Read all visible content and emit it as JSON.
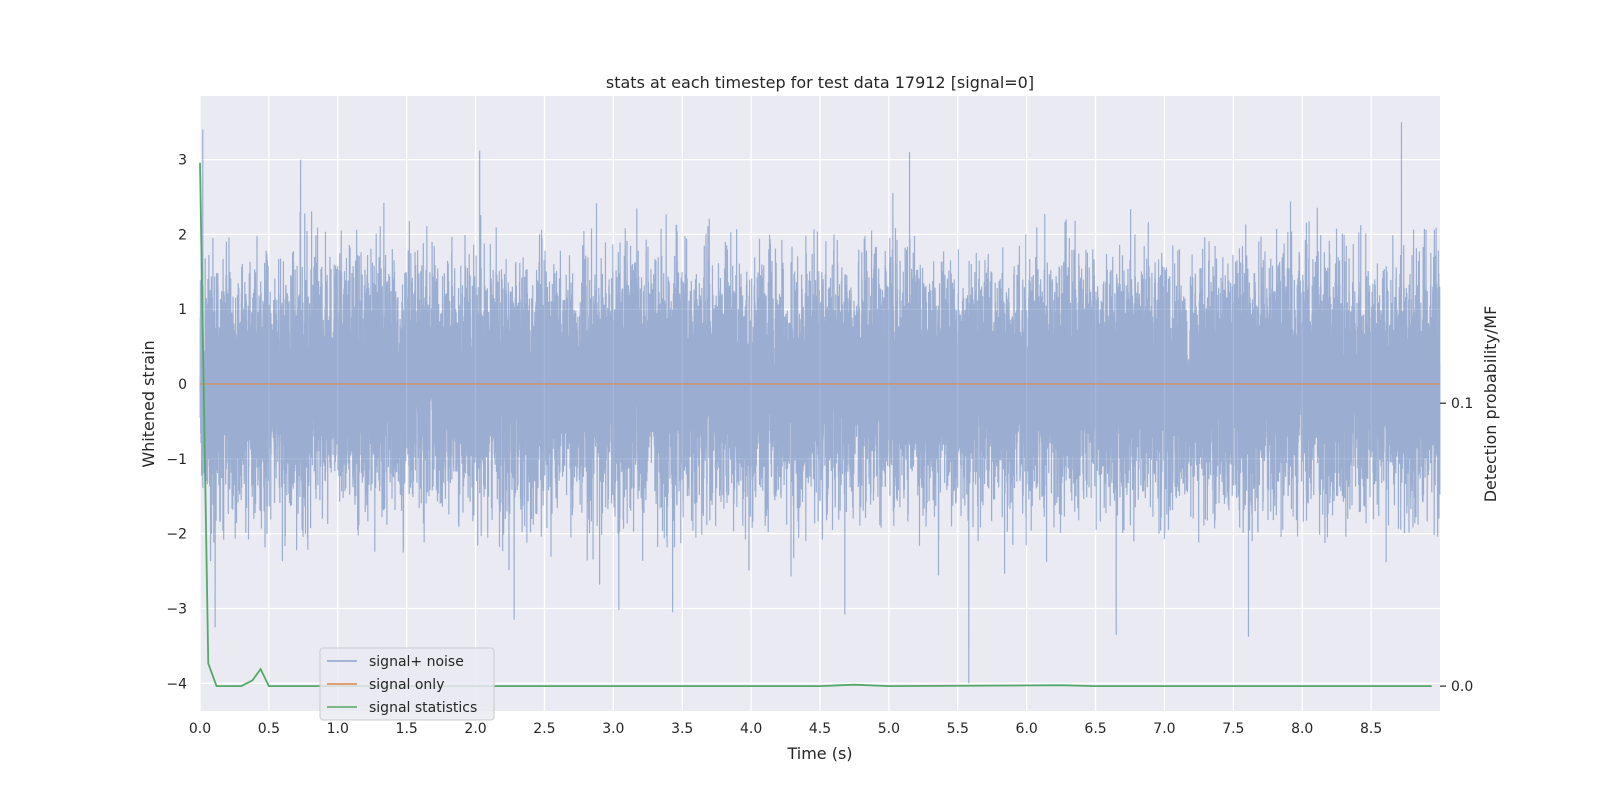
{
  "chart_data": {
    "type": "line",
    "title": "stats at each timestep for test data 17912 [signal=0]",
    "xlabel": "Time (s)",
    "ylabel": "Whitened strain",
    "y2label": "Detection probability/MF",
    "xlim": [
      0,
      9.0
    ],
    "ylim": [
      -4.37,
      3.85
    ],
    "y2lim": [
      -0.0088,
      0.2086
    ],
    "xticks": [
      "0.0",
      "0.5",
      "1.0",
      "1.5",
      "2.0",
      "2.5",
      "3.0",
      "3.5",
      "4.0",
      "4.5",
      "5.0",
      "5.5",
      "6.0",
      "6.5",
      "7.0",
      "7.5",
      "8.0",
      "8.5"
    ],
    "yticks": [
      "−4",
      "−3",
      "−2",
      "−1",
      "0",
      "1",
      "2",
      "3"
    ],
    "y2ticks": [
      "0.0",
      "0.1"
    ],
    "grid": true,
    "legend_position": "lower-left",
    "series": [
      {
        "name": "signal+ noise",
        "axis": "left",
        "color": "#4c72b0",
        "style": "dense-noise",
        "x_range": [
          0,
          9.0
        ],
        "sample_rate_hz": 2048,
        "typical_envelope": [
          -2.3,
          2.3
        ],
        "peaks": [
          {
            "x": 0.02,
            "y": 3.4
          },
          {
            "x": 0.11,
            "y": -3.25
          },
          {
            "x": 0.73,
            "y": 3.0
          },
          {
            "x": 2.03,
            "y": 3.12
          },
          {
            "x": 2.28,
            "y": -3.15
          },
          {
            "x": 3.04,
            "y": -3.02
          },
          {
            "x": 3.43,
            "y": -3.05
          },
          {
            "x": 4.68,
            "y": -3.08
          },
          {
            "x": 5.15,
            "y": 3.1
          },
          {
            "x": 5.58,
            "y": -4.0
          },
          {
            "x": 6.65,
            "y": -3.35
          },
          {
            "x": 7.61,
            "y": -3.38
          },
          {
            "x": 8.72,
            "y": 3.5
          }
        ]
      },
      {
        "name": "signal only",
        "axis": "left",
        "color": "#dd8452",
        "x": [
          0,
          9.0
        ],
        "y": [
          0,
          0
        ]
      },
      {
        "name": "signal statistics",
        "axis": "right",
        "color": "#55a868",
        "x": [
          0,
          0.01,
          0.06,
          0.12,
          0.3,
          0.38,
          0.44,
          0.5,
          1.0,
          4.5,
          4.75,
          5.0,
          6.25,
          6.5,
          8.94
        ],
        "y": [
          0.185,
          0.155,
          0.008,
          0.0,
          0.0,
          0.002,
          0.006,
          0.0,
          0.0,
          0.0,
          0.0005,
          0.0,
          0.0003,
          0.0,
          0.0
        ]
      }
    ]
  }
}
